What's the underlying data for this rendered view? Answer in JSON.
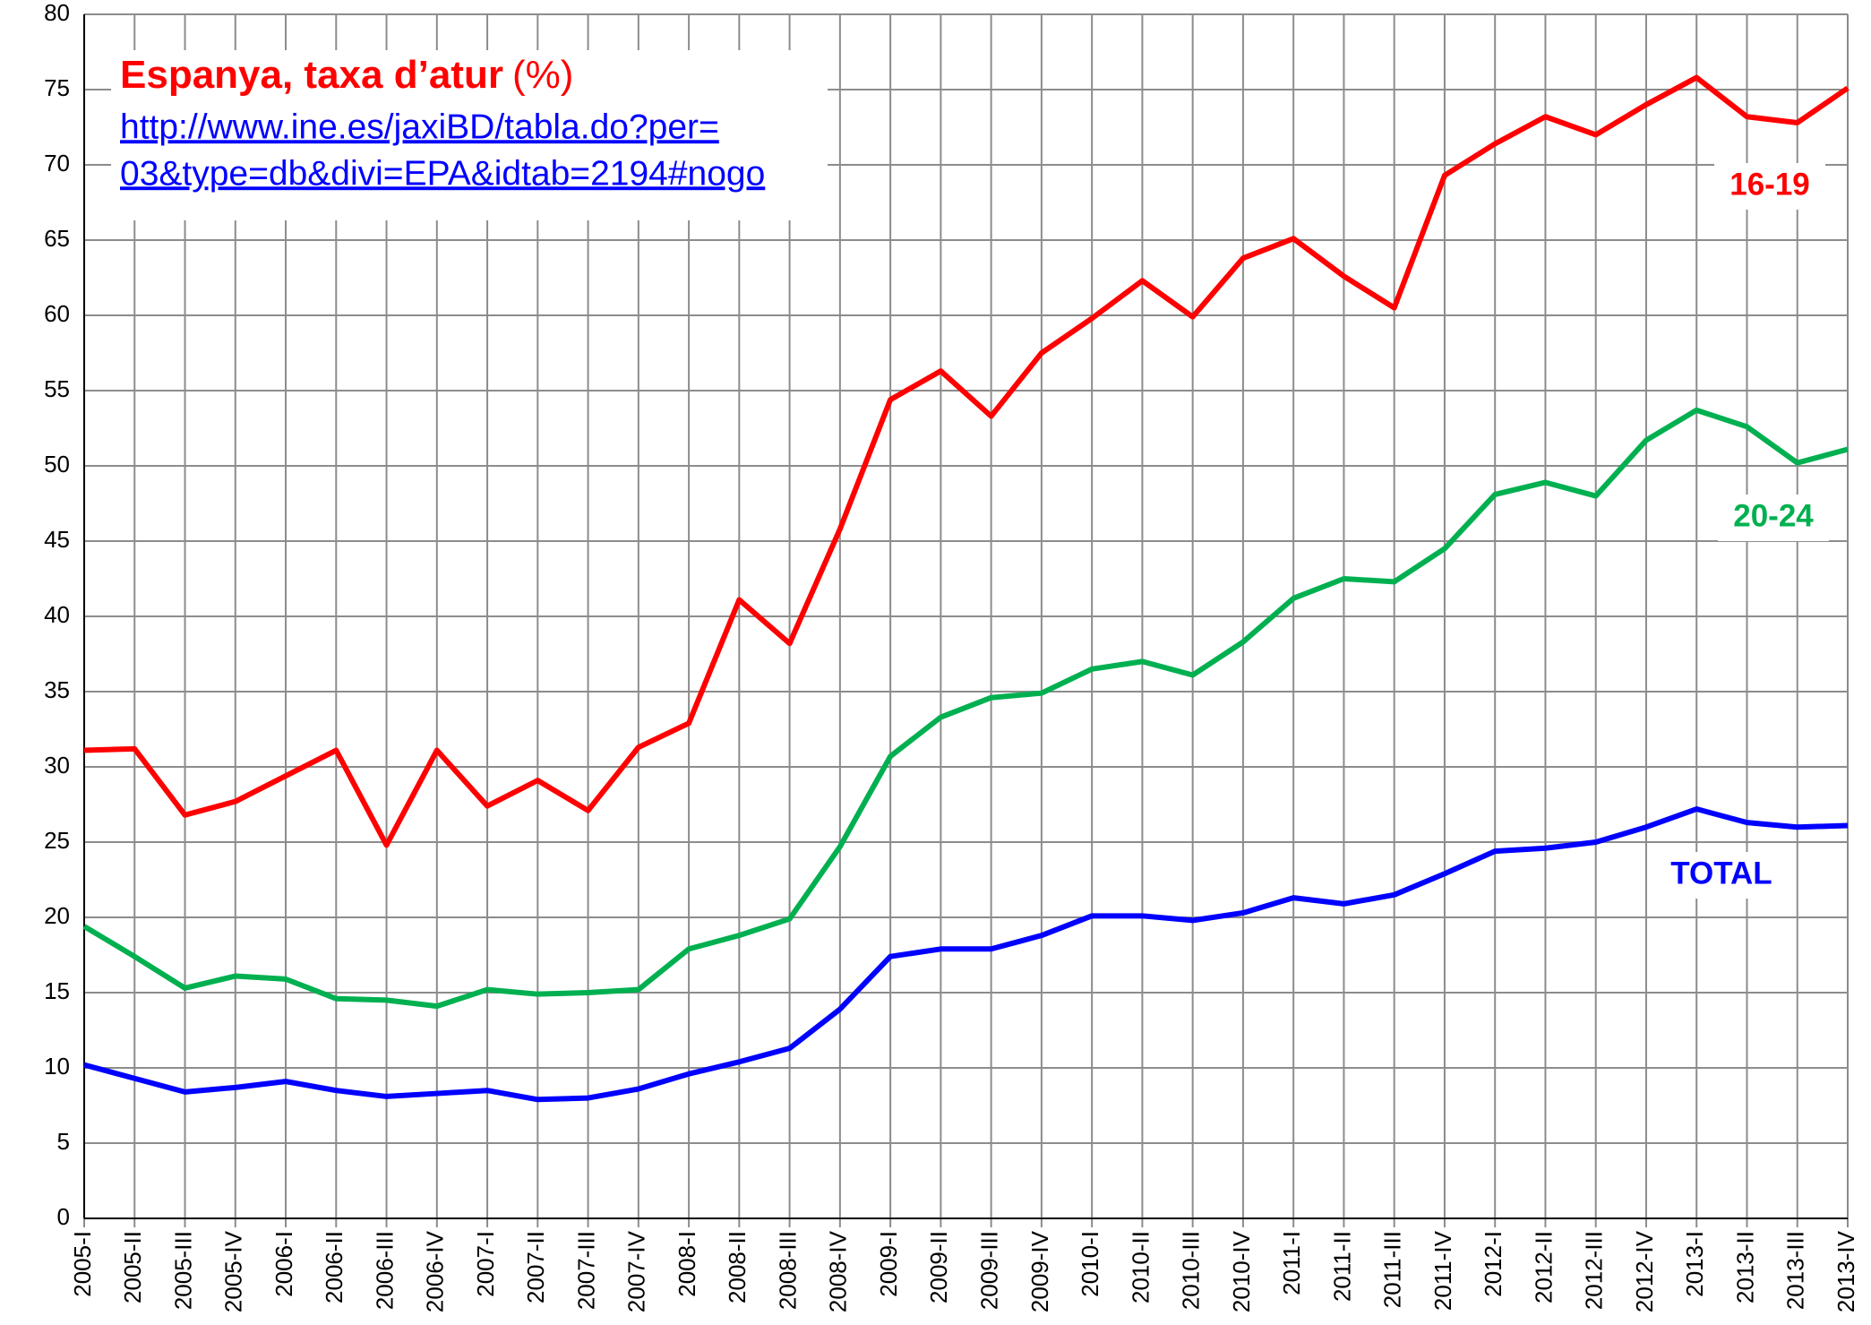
{
  "chart_data": {
    "type": "line",
    "title": "Espanya, taxa d’atur",
    "title_unit": "(%)",
    "source_link": [
      "http://www.ine.es/jaxiBD/tabla.do?per=",
      "03&type=db&divi=EPA&idtab=2194#nogo"
    ],
    "categories": [
      "2005-I",
      "2005-II",
      "2005-III",
      "2005-IV",
      "2006-I",
      "2006-II",
      "2006-III",
      "2006-IV",
      "2007-I",
      "2007-II",
      "2007-III",
      "2007-IV",
      "2008-I",
      "2008-II",
      "2008-III",
      "2008-IV",
      "2009-I",
      "2009-II",
      "2009-III",
      "2009-IV",
      "2010-I",
      "2010-II",
      "2010-III",
      "2010-IV",
      "2011-I",
      "2011-II",
      "2011-III",
      "2011-IV",
      "2012-I",
      "2012-II",
      "2012-III",
      "2012-IV",
      "2013-I",
      "2013-II",
      "2013-III",
      "2013-IV"
    ],
    "series": [
      {
        "name": "16-19",
        "color": "#ff0000",
        "values": [
          31.1,
          31.2,
          26.8,
          27.7,
          29.4,
          31.1,
          24.8,
          31.1,
          27.4,
          29.1,
          27.1,
          31.3,
          32.9,
          41.1,
          38.2,
          45.8,
          54.4,
          56.3,
          53.3,
          57.5,
          59.8,
          62.3,
          59.9,
          63.8,
          65.1,
          62.6,
          60.5,
          69.3,
          71.4,
          73.2,
          72.0,
          74.0,
          75.8,
          73.2,
          72.8,
          75.1
        ]
      },
      {
        "name": "20-24",
        "color": "#00b050",
        "values": [
          19.4,
          17.4,
          15.3,
          16.1,
          15.9,
          14.6,
          14.5,
          14.1,
          15.2,
          14.9,
          15.0,
          15.2,
          17.9,
          18.8,
          19.9,
          24.7,
          30.7,
          33.3,
          34.6,
          34.9,
          36.5,
          37.0,
          36.1,
          38.3,
          41.2,
          42.5,
          42.3,
          44.5,
          48.1,
          48.9,
          48.0,
          51.7,
          53.7,
          52.6,
          50.2,
          51.1
        ]
      },
      {
        "name": "TOTAL",
        "color": "#0000ff",
        "values": [
          10.2,
          9.3,
          8.4,
          8.7,
          9.1,
          8.5,
          8.1,
          8.3,
          8.5,
          7.9,
          8.0,
          8.6,
          9.6,
          10.4,
          11.3,
          13.9,
          17.4,
          17.9,
          17.9,
          18.8,
          20.1,
          20.1,
          19.8,
          20.3,
          21.3,
          20.9,
          21.5,
          22.9,
          24.4,
          24.6,
          25.0,
          26.0,
          27.2,
          26.3,
          26.0,
          26.1
        ]
      }
    ],
    "ylim": [
      0,
      80
    ],
    "yticks": [
      0,
      5,
      10,
      15,
      20,
      25,
      30,
      35,
      40,
      45,
      50,
      55,
      60,
      65,
      70,
      75,
      80
    ],
    "grid": true
  }
}
